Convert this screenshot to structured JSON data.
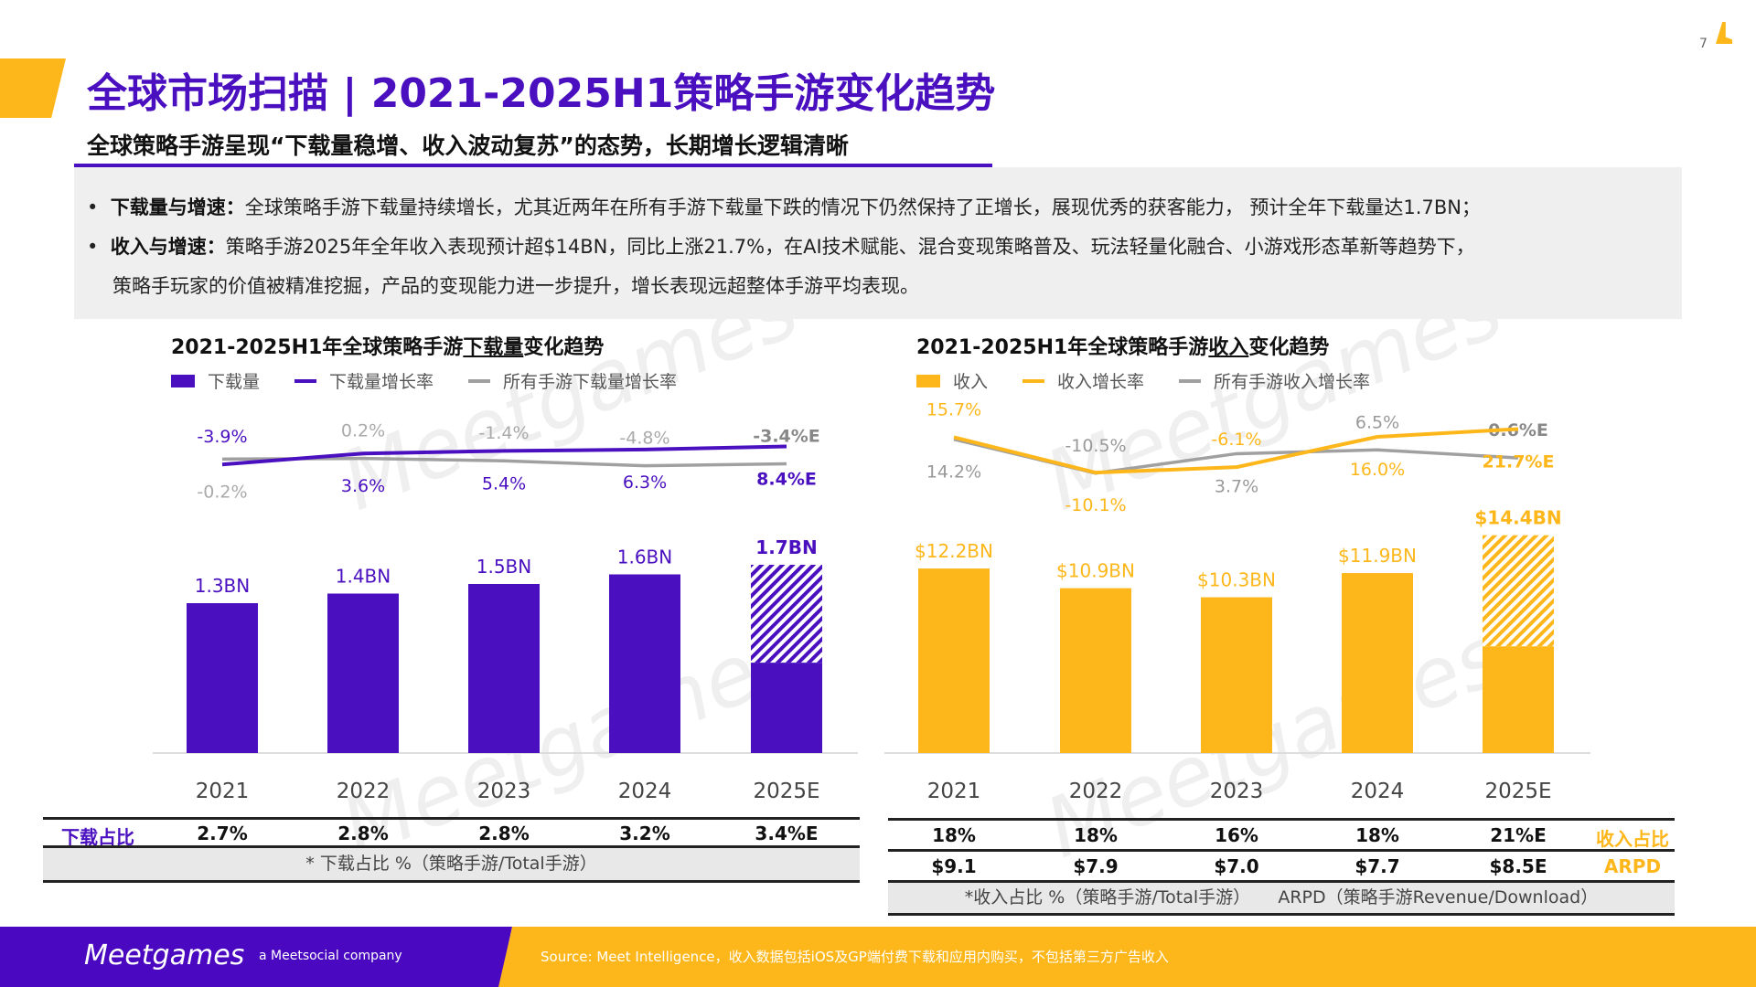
{
  "page_number": "7",
  "title": "全球市场扫描 | 2021-2025H1策略手游变化趋势",
  "subtitle": "全球策略手游呈现“下载量稳增、收入波动复苏”的态势，长期增长逻辑清晰",
  "bullets": [
    {
      "label": "下载量与增速：",
      "text": "全球策略手游下载量持续增长，尤其近两年在所有手游下载量下跌的情况下仍然保持了正增长，展现优秀的获客能力， 预计全年下载量达1.7BN；"
    },
    {
      "label": "收入与增速：",
      "text": "策略手游2025年全年收入表现预计超$14BN，同比上涨21.7%，在AI技术赋能、混合变现策略普及、玩法轻量化融合、小游戏形态革新等趋势下，"
    },
    {
      "label": "",
      "text": "策略手玩家的价值被精准挖掘，产品的变现能力进一步提升，增长表现远超整体手游平均表现。"
    }
  ],
  "colors": {
    "purple": "#4a10c0",
    "orange": "#fdb71b",
    "gray": "#a0a0a0"
  },
  "chart_data": [
    {
      "type": "bar+line",
      "title_pre": "2021-2025H1年全球策略手游",
      "title_u": "下载量",
      "title_post": "变化趋势",
      "categories": [
        "2021",
        "2022",
        "2023",
        "2024",
        "2025E"
      ],
      "legend": [
        "下载量",
        "下载量增长率",
        "所有手游下载量增长率"
      ],
      "bars": {
        "name": "下载量",
        "unit": "BN",
        "values": [
          1.3,
          1.4,
          1.5,
          1.6,
          1.7
        ],
        "labels": [
          "1.3BN",
          "1.4BN",
          "1.5BN",
          "1.6BN",
          "1.7BN"
        ],
        "last_solid_fraction": 0.48
      },
      "series": [
        {
          "name": "下载量增长率",
          "values": [
            -3.9,
            3.6,
            5.4,
            6.3,
            8.4
          ],
          "labels": [
            "-3.9%",
            "3.6%",
            "5.4%",
            "6.3%",
            "8.4%E"
          ]
        },
        {
          "name": "所有手游下载量增长率",
          "values": [
            -0.2,
            0.2,
            -1.4,
            -4.8,
            -3.4
          ],
          "labels": [
            "-0.2%",
            "0.2%",
            "-1.4%",
            "-4.8%",
            "-3.4%E"
          ]
        }
      ],
      "table": {
        "row_label": "下载占比",
        "rows": [
          [
            "2.7%",
            "2.8%",
            "2.8%",
            "3.2%",
            "3.4%E"
          ]
        ],
        "note": "* 下载占比 %（策略手游/Total手游）"
      }
    },
    {
      "type": "bar+line",
      "title_pre": "2021-2025H1年全球策略手游",
      "title_u": "收入",
      "title_post": "变化趋势",
      "categories": [
        "2021",
        "2022",
        "2023",
        "2024",
        "2025E"
      ],
      "legend": [
        "收入",
        "收入增长率",
        "所有手游收入增长率"
      ],
      "bars": {
        "name": "收入",
        "unit": "$BN",
        "values": [
          12.2,
          10.9,
          10.3,
          11.9,
          14.4
        ],
        "labels": [
          "$12.2BN",
          "$10.9BN",
          "$10.3BN",
          "$11.9BN",
          "$14.4BN"
        ],
        "last_solid_fraction": 0.49
      },
      "series": [
        {
          "name": "收入增长率",
          "values": [
            15.7,
            -10.1,
            -6.1,
            16.0,
            21.7
          ],
          "labels": [
            "15.7%",
            "-10.1%",
            "-6.1%",
            "16.0%",
            "21.7%E"
          ]
        },
        {
          "name": "所有手游收入增长率",
          "values": [
            14.2,
            -10.5,
            3.7,
            6.5,
            0.6
          ],
          "labels": [
            "14.2%",
            "-10.5%",
            "3.7%",
            "6.5%",
            "0.6%E"
          ]
        }
      ],
      "table": {
        "row_labels": [
          "收入占比",
          "ARPD"
        ],
        "rows": [
          [
            "18%",
            "18%",
            "16%",
            "18%",
            "21%E"
          ],
          [
            "$9.1",
            "$7.9",
            "$7.0",
            "$7.7",
            "$8.5E"
          ]
        ],
        "note": "*收入占比 %（策略手游/Total手游）     ARPD（策略手游Revenue/Download）"
      }
    }
  ],
  "footer": {
    "logo": "Meetgames",
    "tagline": "a Meetsocial company",
    "source": "Source: Meet Intelligence，收入数据包括iOS及GP端付费下载和应用内购买，不包括第三方广告收入"
  }
}
